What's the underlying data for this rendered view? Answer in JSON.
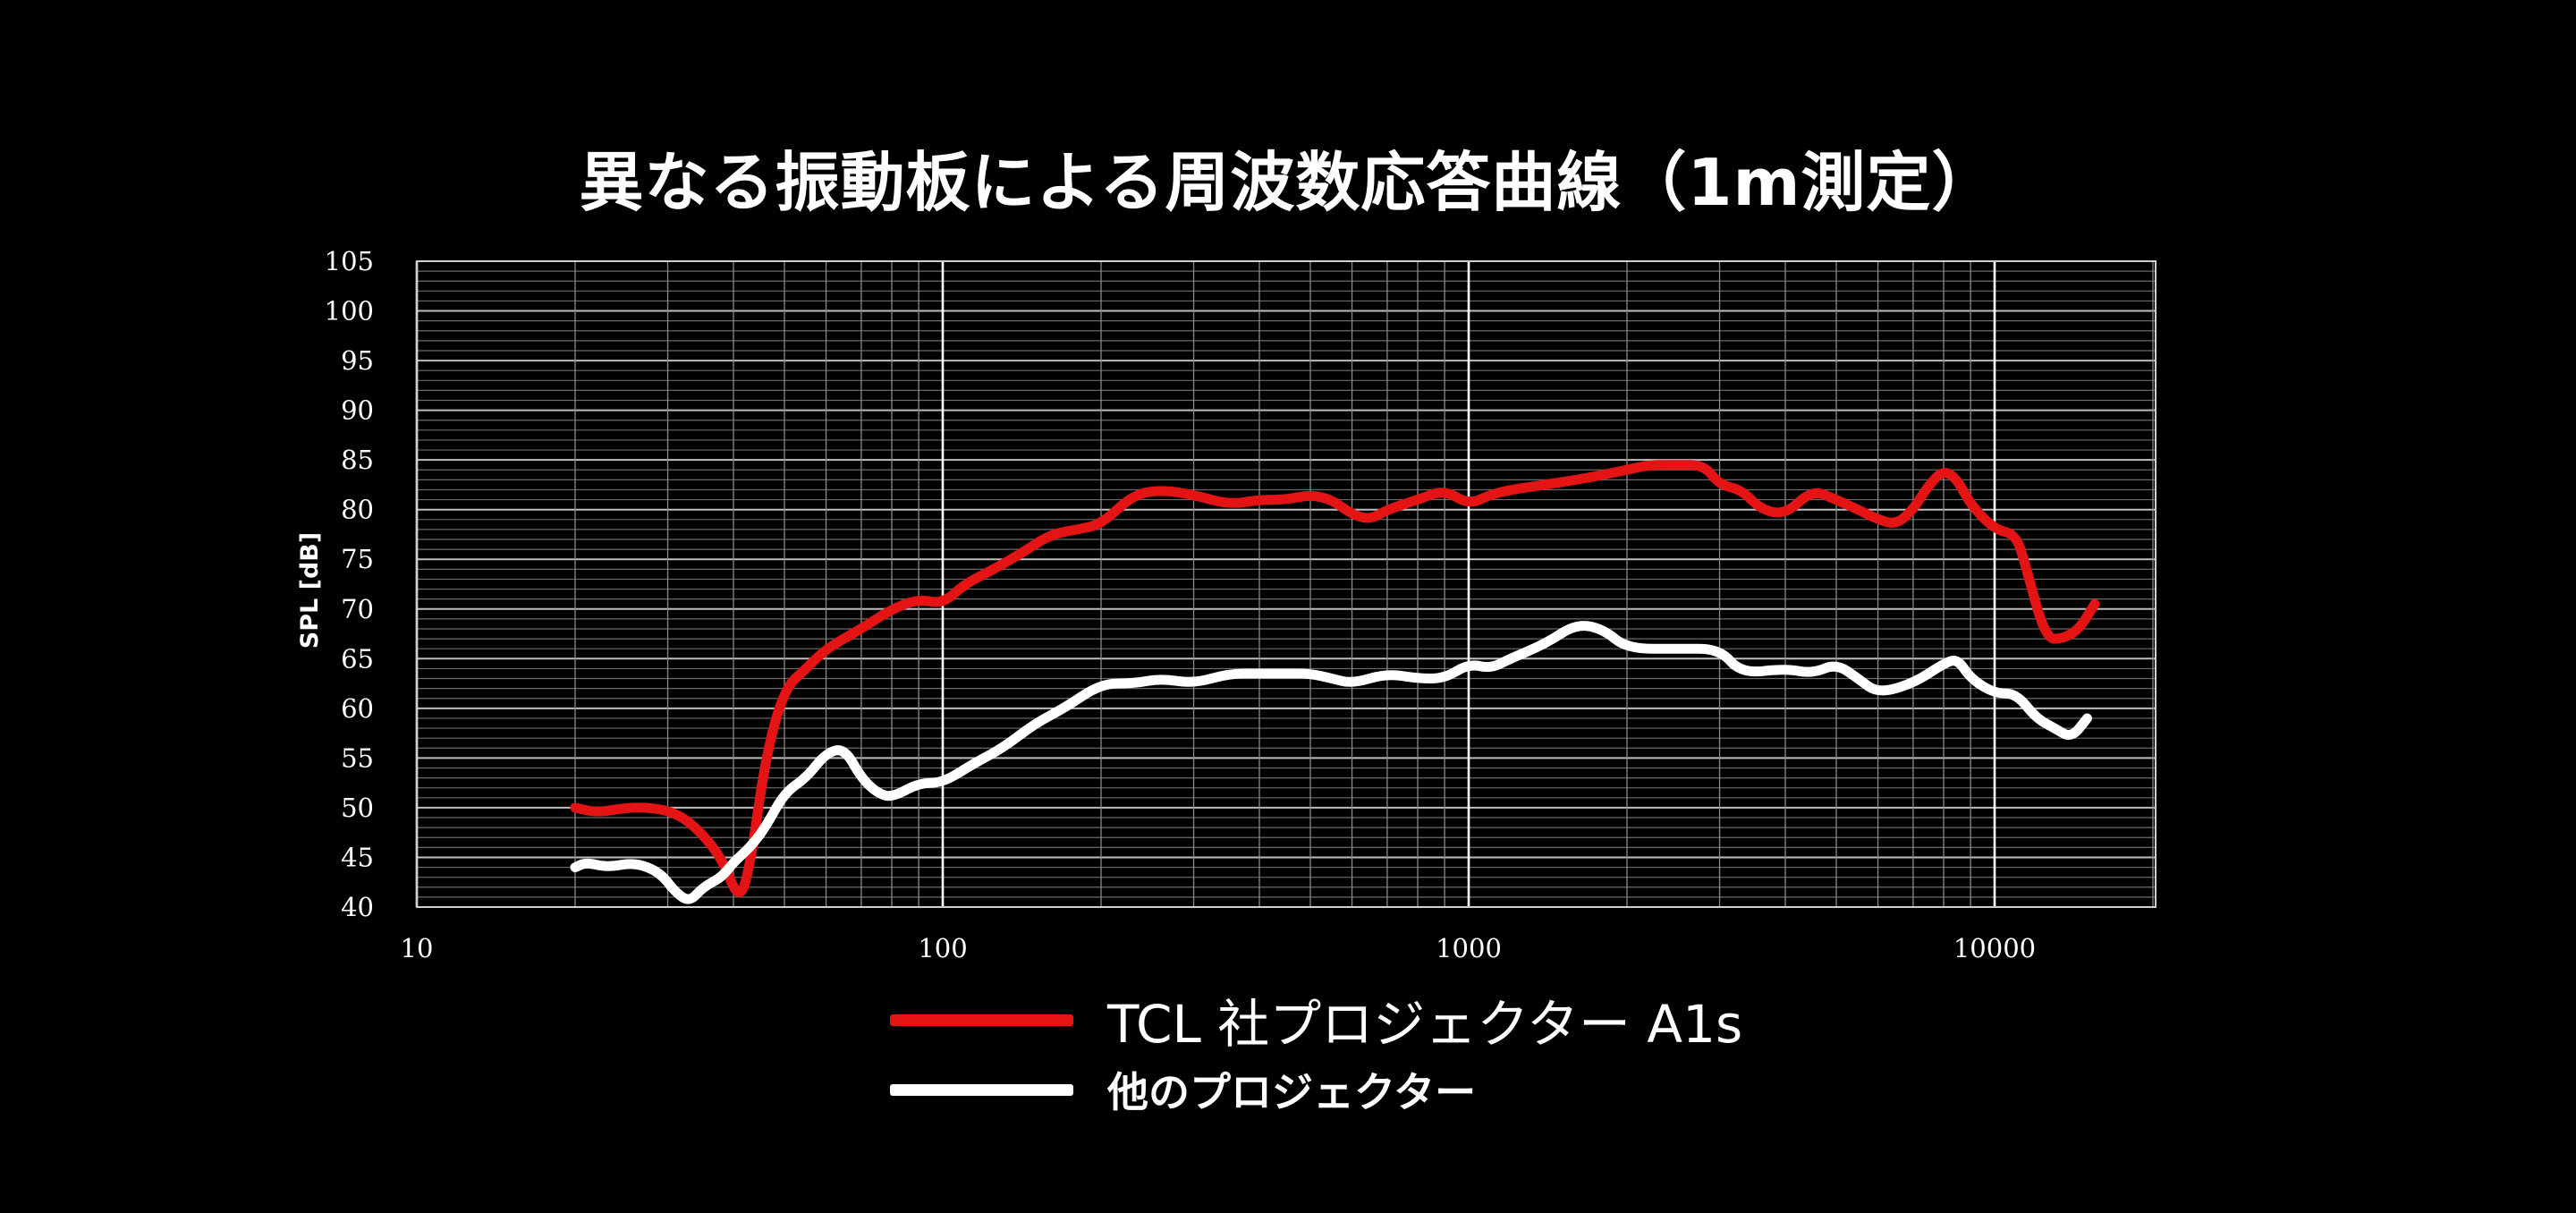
{
  "title": "異なる振動板による周波数応答曲線（1m測定）",
  "colors": {
    "background": "#000000",
    "tcl": "#e41414",
    "other": "#ffffff",
    "grid": "#9a9a9a"
  },
  "chart_data": {
    "type": "line",
    "title": "異なる振動板による周波数応答曲線（1m測定）",
    "xlabel": "",
    "ylabel": "SPL [dB]",
    "xscale": "log",
    "xlim": [
      10,
      20000
    ],
    "ylim": [
      40,
      105
    ],
    "xticks": [
      10,
      100,
      1000,
      10000
    ],
    "xtick_labels": [
      "10",
      "100",
      "1000",
      "10000"
    ],
    "yticks": [
      40,
      45,
      50,
      55,
      60,
      65,
      70,
      75,
      80,
      85,
      90,
      95,
      100,
      105
    ],
    "ytick_labels": [
      "40",
      "45",
      "50",
      "55",
      "60",
      "65",
      "70",
      "75",
      "80",
      "85",
      "90",
      "95",
      "100",
      "105"
    ],
    "grid": true,
    "legend_position": "bottom-center",
    "series": [
      {
        "name": "TCL 社プロジェクター A1s",
        "color": "#e41414",
        "x": [
          20,
          22,
          25,
          28,
          31,
          34,
          38,
          41,
          43,
          46,
          50,
          55,
          60,
          70,
          80,
          90,
          100,
          110,
          125,
          140,
          160,
          180,
          200,
          230,
          260,
          300,
          350,
          400,
          450,
          500,
          550,
          600,
          650,
          700,
          800,
          900,
          1000,
          1100,
          1200,
          1400,
          1600,
          1800,
          2000,
          2200,
          2500,
          2800,
          3000,
          3300,
          3600,
          4000,
          4500,
          5000,
          5500,
          6000,
          6500,
          7000,
          7500,
          8000,
          8500,
          9000,
          10000,
          11000,
          11500,
          12500,
          13500,
          14500,
          15500
        ],
        "y": [
          50,
          49.5,
          50,
          50,
          49.5,
          48,
          45,
          40.5,
          44,
          55,
          62,
          64,
          66,
          68,
          70,
          71,
          70.5,
          72.5,
          74,
          75.5,
          77.5,
          78,
          78.5,
          81.5,
          82,
          81.5,
          80.5,
          81,
          81,
          81.5,
          81,
          79.5,
          79,
          80,
          81,
          82,
          80.5,
          81.5,
          82,
          82.5,
          83,
          83.5,
          84,
          84.5,
          84.5,
          84.5,
          82.5,
          82,
          80,
          79.5,
          82,
          81,
          80,
          79,
          78.5,
          80,
          82.5,
          84,
          83,
          80.5,
          78,
          77.5,
          74,
          67,
          67,
          68,
          70.5
        ]
      },
      {
        "name": "他のプロジェクター",
        "color": "#ffffff",
        "x": [
          20,
          21,
          23,
          26,
          29,
          31,
          33,
          35,
          38,
          40,
          43,
          46,
          50,
          55,
          60,
          65,
          70,
          75,
          80,
          90,
          100,
          115,
          130,
          150,
          170,
          200,
          230,
          260,
          300,
          350,
          400,
          450,
          500,
          550,
          600,
          700,
          800,
          900,
          1000,
          1100,
          1200,
          1400,
          1600,
          1800,
          2000,
          2500,
          3000,
          3300,
          4000,
          4500,
          5000,
          5500,
          6000,
          7000,
          8000,
          8500,
          9000,
          10000,
          11000,
          12000,
          13000,
          14000,
          15000
        ],
        "y": [
          44,
          44.5,
          44,
          44.5,
          43.5,
          41.5,
          40.5,
          42,
          43,
          44.5,
          46,
          48,
          51.5,
          53,
          55.5,
          56,
          53,
          51.5,
          51,
          52.5,
          52.5,
          54.5,
          56,
          58.5,
          60,
          62.5,
          62.5,
          63,
          62.5,
          63.5,
          63.5,
          63.5,
          63.5,
          63,
          62.5,
          63.5,
          63,
          63,
          64.5,
          64,
          65,
          66.5,
          68.5,
          68,
          66,
          66,
          66,
          63.5,
          64,
          63.5,
          64.5,
          63,
          61.5,
          62.5,
          64.5,
          65,
          63,
          61.5,
          61.5,
          59,
          58,
          57,
          59
        ]
      }
    ]
  },
  "legend": [
    {
      "label": "TCL 社プロジェクター A1s",
      "color": "#e41414"
    },
    {
      "label": "他のプロジェクター",
      "color": "#ffffff"
    }
  ]
}
